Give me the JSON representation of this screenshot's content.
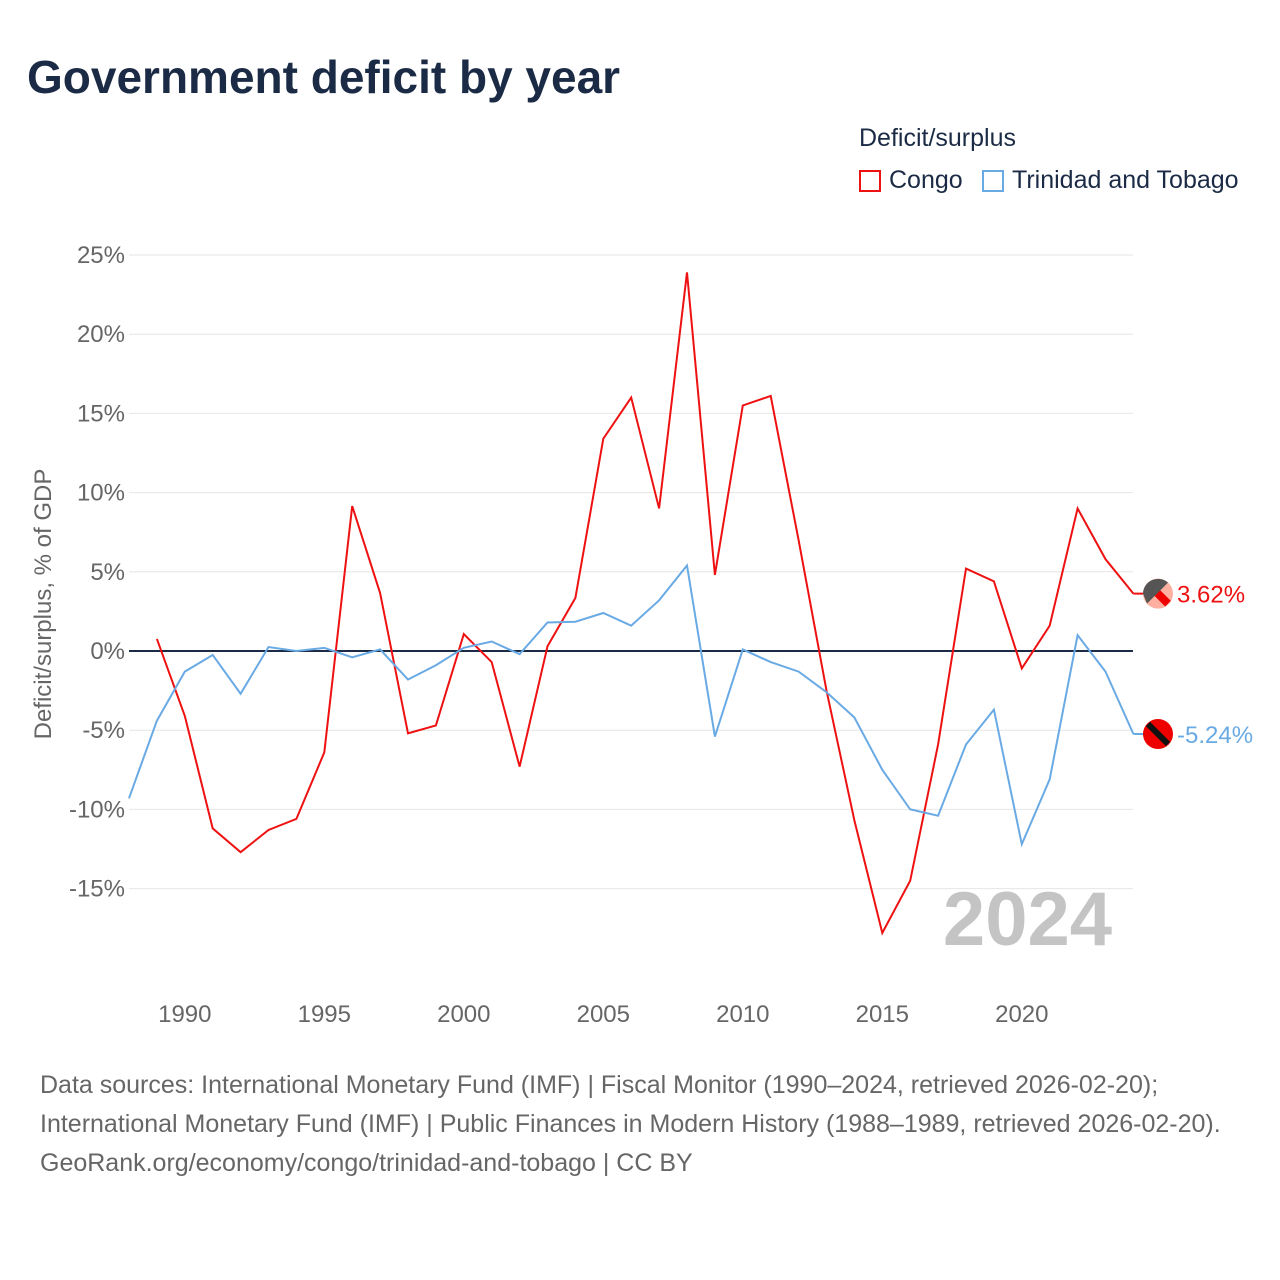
{
  "title": "Government deficit by year",
  "legend": {
    "title": "Deficit/surplus",
    "items": [
      {
        "label": "Congo",
        "color": "#ee1111"
      },
      {
        "label": "Trinidad and Tobago",
        "color": "#6aaae4"
      }
    ]
  },
  "year_label": "2024",
  "end_labels": [
    "3.62%",
    "-5.24%"
  ],
  "footer": {
    "line1": "Data sources: International Monetary Fund (IMF) | Fiscal Monitor (1990–2024, retrieved 2026-02-20); International Monetary Fund (IMF) | Public Finances in Modern History (1988–1989, retrieved 2026-02-20).",
    "line2": "GeoRank.org/economy/congo/trinidad-and-tobago | CC BY"
  },
  "chart_data": {
    "type": "line",
    "title": "Government deficit by year",
    "xlabel": "",
    "ylabel": "Deficit/surplus, % of GDP",
    "xlim": [
      1988,
      2024
    ],
    "ylim": [
      -20,
      27
    ],
    "yticks": [
      25,
      20,
      15,
      10,
      5,
      0,
      -5,
      -10,
      -15
    ],
    "ytick_labels": [
      "25%",
      "20%",
      "15%",
      "10%",
      "5%",
      "0%",
      "-5%",
      "-10%",
      "-15%"
    ],
    "xticks": [
      1990,
      1995,
      2000,
      2005,
      2010,
      2015,
      2020
    ],
    "xtick_labels": [
      "1990",
      "1995",
      "2000",
      "2005",
      "2010",
      "2015",
      "2020"
    ],
    "legend_position": "top-right",
    "grid": true,
    "series": [
      {
        "name": "Congo",
        "color": "#ee1111",
        "start": 1989,
        "values": [
          0.76,
          -4.1,
          -11.2,
          -12.7,
          -11.3,
          -10.6,
          -6.4,
          9.15,
          3.66,
          -5.2,
          -4.7,
          1.07,
          -0.7,
          -7.3,
          0.3,
          3.35,
          13.4,
          16.0,
          9.0,
          23.9,
          4.8,
          15.5,
          16.1,
          7.0,
          -2.5,
          -10.7,
          -17.8,
          -14.5,
          -5.9,
          5.2,
          4.4,
          -1.1,
          1.6,
          9.0,
          5.8,
          3.62
        ]
      },
      {
        "name": "Trinidad and Tobago",
        "color": "#6aaae4",
        "start": 1988,
        "values": [
          -9.3,
          -4.4,
          -1.3,
          -0.25,
          -2.7,
          0.25,
          0,
          0.2,
          -0.4,
          0.1,
          -1.8,
          -0.9,
          0.2,
          0.6,
          -0.2,
          1.8,
          1.85,
          2.4,
          1.6,
          3.2,
          5.4,
          -5.4,
          0.1,
          -0.7,
          -1.3,
          -2.6,
          -4.2,
          -7.5,
          -10.0,
          -10.4,
          -5.9,
          -3.7,
          -12.2,
          -8.1,
          1.0,
          -1.3,
          -5.24
        ]
      }
    ]
  }
}
